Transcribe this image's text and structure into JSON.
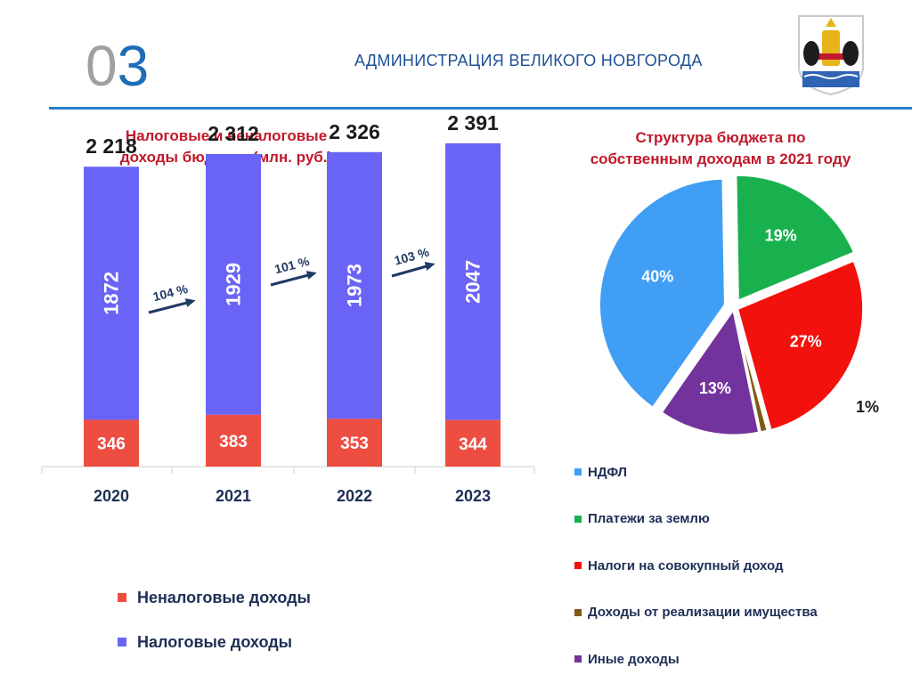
{
  "header": {
    "slide_number_grey": "0",
    "slide_number_blue": "3",
    "organization": "АДМИНИСТРАЦИЯ ВЕЛИКОГО НОВГОРОДА"
  },
  "left_chart_title": [
    "Налоговые и неналоговые",
    "доходы бюджета (млн. руб.)"
  ],
  "right_chart_title": [
    "Структура  бюджета по",
    "собственным доходам в 2021 году"
  ],
  "colors": {
    "tax": "#6a64f6",
    "nontax": "#ee4e42",
    "growth_arrow": "#1f3a63",
    "ndfl": "#409ef4",
    "land": "#18b14e",
    "aggregate": "#f2110c",
    "property": "#7e5a14",
    "other": "#73339c"
  },
  "chart_data": [
    {
      "type": "bar",
      "stacked": true,
      "title": "Налоговые и неналоговые доходы бюджета (млн. руб.)",
      "categories": [
        "2020",
        "2021",
        "2022",
        "2023"
      ],
      "series": [
        {
          "name": "Неналоговые доходы",
          "values": [
            346,
            383,
            353,
            344
          ]
        },
        {
          "name": "Налоговые доходы",
          "values": [
            1872,
            1929,
            1973,
            2047
          ]
        }
      ],
      "totals": [
        "2 218",
        "2 312",
        "2 326",
        "2 391"
      ],
      "growth": [
        "104 %",
        "101 %",
        "103 %"
      ],
      "legend": [
        "Неналоговые доходы",
        "Налоговые доходы"
      ],
      "legend_position": "bottom-left",
      "ylim": [
        0,
        2700
      ]
    },
    {
      "type": "pie",
      "title": "Структура  бюджета по собственным доходам в 2021 году",
      "labels": [
        "НДФЛ",
        "Платежи за землю",
        "Налоги на совокупный доход",
        "Доходы от реализации имущества",
        "Иные доходы"
      ],
      "values": [
        40,
        19,
        27,
        1,
        13
      ],
      "value_labels": [
        "40%",
        "19%",
        "27%",
        "1%",
        "13%"
      ],
      "legend_position": "bottom"
    }
  ]
}
